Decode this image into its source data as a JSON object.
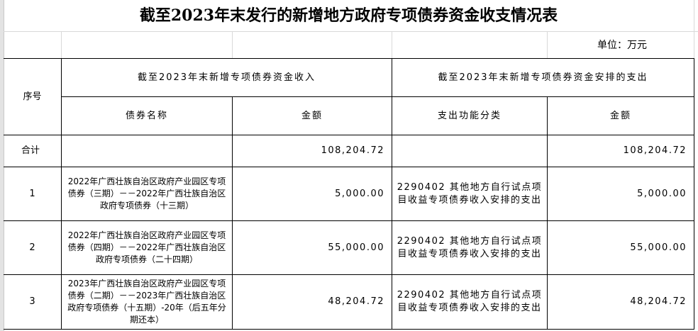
{
  "title": "截至2023年末发行的新增地方政府专项债券资金收支情况表",
  "unit": "单位：万元",
  "headers": {
    "seq": "序号",
    "income_group": "截至2023年末新增专项债券资金收入",
    "expense_group": "截至2023年末新增专项债券资金安排的支出",
    "bond_name": "债券名称",
    "income_amount": "金额",
    "expense_class": "支出功能分类",
    "expense_amount": "金额"
  },
  "total": {
    "label": "合计",
    "income_amount": "108,204.72",
    "expense_amount": "108,204.72"
  },
  "rows": [
    {
      "seq": "1",
      "bond_name": "2022年广西壮族自治区政府产业园区专项债券（三期）－－2022年广西壮族自治区政府专项债券（十三期）",
      "income_amount": "5,000.00",
      "expense_class": "2290402 其他地方自行试点项目收益专项债券收入安排的支出",
      "expense_amount": "5,000.00"
    },
    {
      "seq": "2",
      "bond_name": "2022年广西壮族自治区政府产业园区专项债券（四期）－－2022年广西壮族自治区政府专项债券（二十四期）",
      "income_amount": "55,000.00",
      "expense_class": "2290402 其他地方自行试点项目收益专项债券收入安排的支出",
      "expense_amount": "55,000.00"
    },
    {
      "seq": "3",
      "bond_name": "2023年广西壮族自治区政府产业园区专项债券（二期）－－2023年广西壮族自治区政府专项债券（十五期）-20年（后五年分期还本）",
      "income_amount": "48,204.72",
      "expense_class": "2290402 其他地方自行试点项目收益专项债券收入安排的支出",
      "expense_amount": "48,204.72"
    }
  ]
}
